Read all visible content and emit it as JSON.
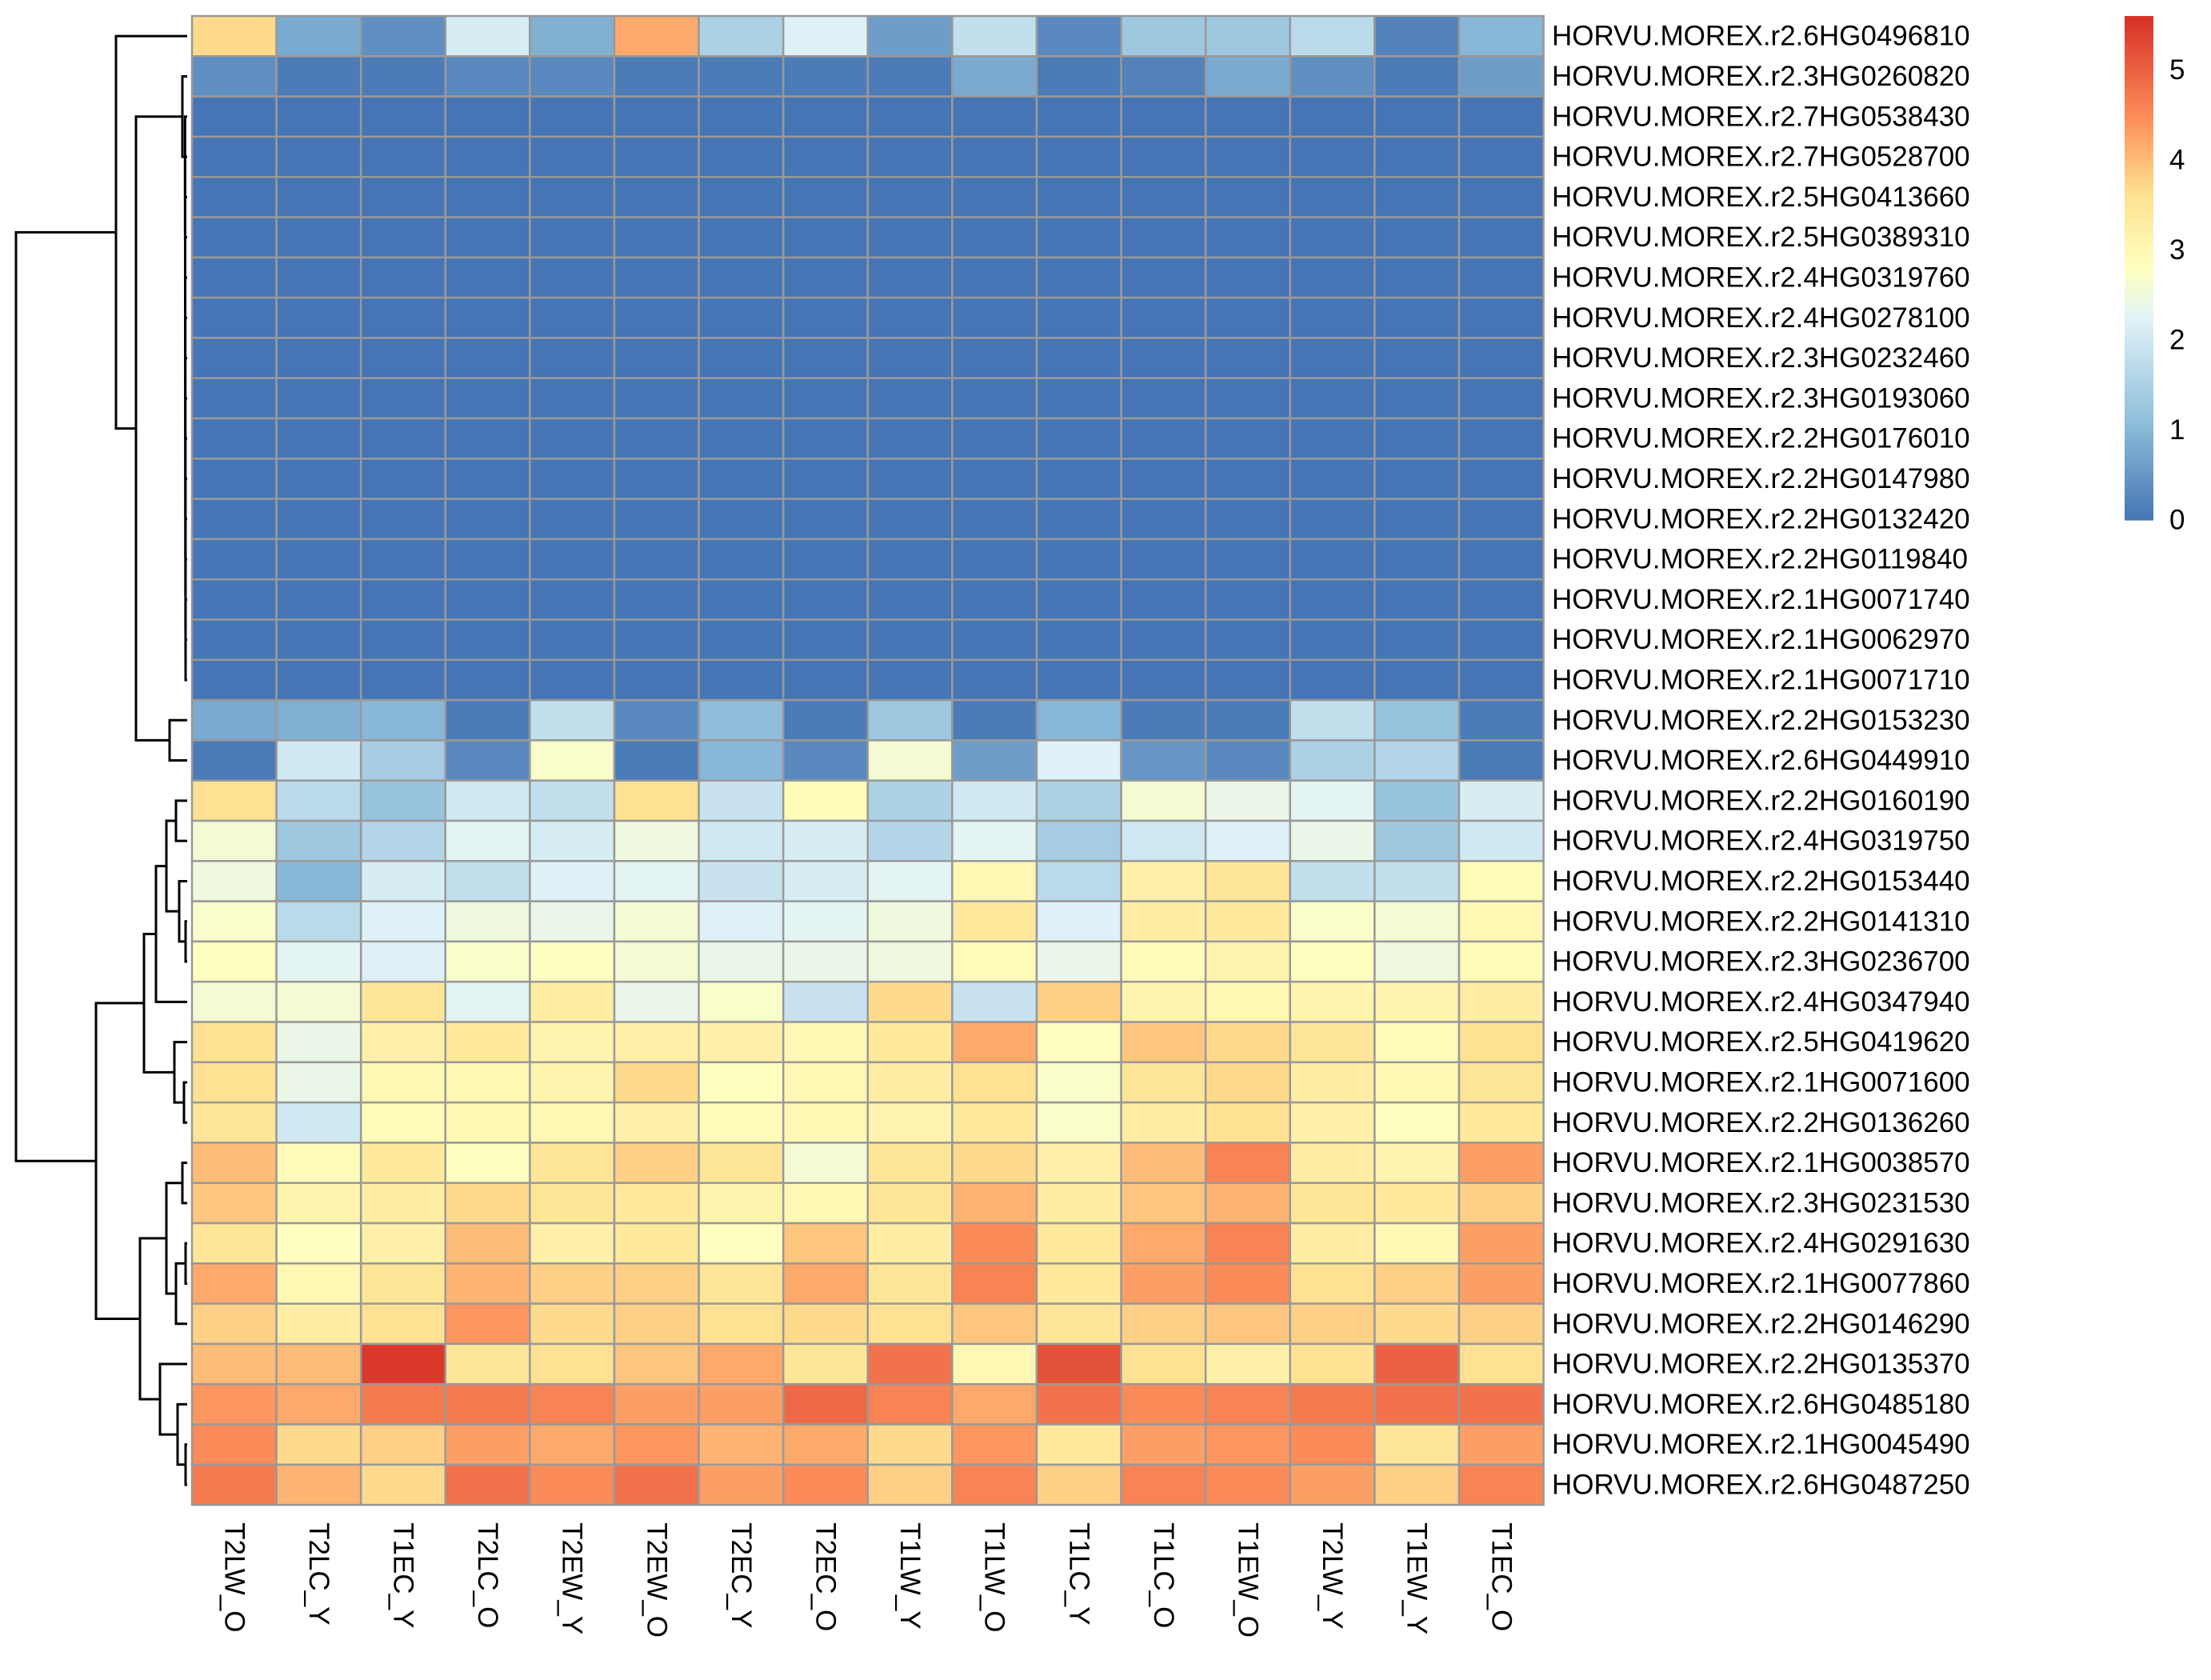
{
  "chart_data": {
    "type": "heatmap",
    "columns": [
      "T2LW_O",
      "T2LC_Y",
      "T1EC_Y",
      "T2LC_O",
      "T2EW_Y",
      "T2EW_O",
      "T2EC_Y",
      "T2EC_O",
      "T1LW_Y",
      "T1LW_O",
      "T1LC_Y",
      "T1LC_O",
      "T1EW_O",
      "T2LW_Y",
      "T1EW_Y",
      "T1EC_O"
    ],
    "rows": [
      "HORVU.MOREX.r2.6HG0496810",
      "HORVU.MOREX.r2.3HG0260820",
      "HORVU.MOREX.r2.7HG0538430",
      "HORVU.MOREX.r2.7HG0528700",
      "HORVU.MOREX.r2.5HG0413660",
      "HORVU.MOREX.r2.5HG0389310",
      "HORVU.MOREX.r2.4HG0319760",
      "HORVU.MOREX.r2.4HG0278100",
      "HORVU.MOREX.r2.3HG0232460",
      "HORVU.MOREX.r2.3HG0193060",
      "HORVU.MOREX.r2.2HG0176010",
      "HORVU.MOREX.r2.2HG0147980",
      "HORVU.MOREX.r2.2HG0132420",
      "HORVU.MOREX.r2.2HG0119840",
      "HORVU.MOREX.r2.1HG0071740",
      "HORVU.MOREX.r2.1HG0062970",
      "HORVU.MOREX.r2.1HG0071710",
      "HORVU.MOREX.r2.2HG0153230",
      "HORVU.MOREX.r2.6HG0449910",
      "HORVU.MOREX.r2.2HG0160190",
      "HORVU.MOREX.r2.4HG0319750",
      "HORVU.MOREX.r2.2HG0153440",
      "HORVU.MOREX.r2.2HG0141310",
      "HORVU.MOREX.r2.3HG0236700",
      "HORVU.MOREX.r2.4HG0347940",
      "HORVU.MOREX.r2.5HG0419620",
      "HORVU.MOREX.r2.1HG0071600",
      "HORVU.MOREX.r2.2HG0136260",
      "HORVU.MOREX.r2.1HG0038570",
      "HORVU.MOREX.r2.3HG0231530",
      "HORVU.MOREX.r2.4HG0291630",
      "HORVU.MOREX.r2.1HG0077860",
      "HORVU.MOREX.r2.2HG0146290",
      "HORVU.MOREX.r2.2HG0135370",
      "HORVU.MOREX.r2.6HG0485180",
      "HORVU.MOREX.r2.1HG0045490",
      "HORVU.MOREX.r2.6HG0487250"
    ],
    "values": [
      [
        3.7,
        0.8,
        0.4,
        2.1,
        0.9,
        4.2,
        1.5,
        2.2,
        0.6,
        1.8,
        0.3,
        1.3,
        1.3,
        1.7,
        0.2,
        1.0
      ],
      [
        0.4,
        0.1,
        0.1,
        0.3,
        0.3,
        0.1,
        0.1,
        0.1,
        0.1,
        0.8,
        0.1,
        0.2,
        0.8,
        0.4,
        0.1,
        0.6
      ],
      [
        0,
        0,
        0,
        0,
        0,
        0,
        0,
        0,
        0,
        0,
        0,
        0,
        0,
        0,
        0,
        0
      ],
      [
        0,
        0,
        0,
        0,
        0,
        0,
        0,
        0,
        0,
        0,
        0,
        0,
        0,
        0,
        0,
        0
      ],
      [
        0,
        0,
        0,
        0,
        0,
        0,
        0,
        0,
        0,
        0,
        0,
        0,
        0,
        0,
        0,
        0
      ],
      [
        0,
        0,
        0,
        0,
        0,
        0,
        0,
        0,
        0,
        0,
        0,
        0,
        0,
        0,
        0,
        0
      ],
      [
        0,
        0,
        0,
        0,
        0,
        0,
        0,
        0,
        0,
        0,
        0,
        0,
        0,
        0,
        0,
        0
      ],
      [
        0,
        0,
        0,
        0,
        0,
        0,
        0,
        0,
        0,
        0,
        0,
        0,
        0,
        0,
        0,
        0
      ],
      [
        0,
        0,
        0,
        0,
        0,
        0,
        0,
        0,
        0,
        0,
        0,
        0,
        0,
        0,
        0,
        0
      ],
      [
        0,
        0,
        0,
        0,
        0,
        0,
        0,
        0,
        0,
        0,
        0,
        0,
        0,
        0,
        0,
        0
      ],
      [
        0,
        0,
        0,
        0,
        0,
        0,
        0,
        0,
        0,
        0,
        0,
        0,
        0,
        0,
        0,
        0
      ],
      [
        0,
        0,
        0,
        0,
        0,
        0,
        0,
        0,
        0,
        0,
        0,
        0,
        0,
        0,
        0,
        0
      ],
      [
        0,
        0,
        0,
        0,
        0,
        0,
        0,
        0,
        0,
        0,
        0,
        0,
        0,
        0,
        0,
        0
      ],
      [
        0,
        0,
        0,
        0,
        0,
        0,
        0,
        0,
        0,
        0,
        0,
        0,
        0,
        0,
        0,
        0
      ],
      [
        0,
        0,
        0,
        0,
        0,
        0,
        0,
        0,
        0,
        0,
        0,
        0,
        0,
        0,
        0,
        0
      ],
      [
        0,
        0,
        0,
        0,
        0,
        0,
        0,
        0,
        0,
        0,
        0,
        0,
        0,
        0,
        0,
        0
      ],
      [
        0,
        0,
        0,
        0,
        0,
        0,
        0,
        0,
        0,
        0,
        0,
        0,
        0,
        0,
        0,
        0
      ],
      [
        0.8,
        0.9,
        1.0,
        0.1,
        1.8,
        0.3,
        1.1,
        0.1,
        1.3,
        0.1,
        1.0,
        0.1,
        0.1,
        1.8,
        1.2,
        0.1
      ],
      [
        0.1,
        2.0,
        1.4,
        0.3,
        2.7,
        0.1,
        1.0,
        0.3,
        2.6,
        0.6,
        2.2,
        0.5,
        0.3,
        1.5,
        1.6,
        0.1
      ],
      [
        3.6,
        1.7,
        1.2,
        2.0,
        1.8,
        3.6,
        1.9,
        2.9,
        1.5,
        2.0,
        1.5,
        2.6,
        2.4,
        2.3,
        1.2,
        2.1
      ],
      [
        2.6,
        1.3,
        1.6,
        2.3,
        2.1,
        2.5,
        2.0,
        2.1,
        1.6,
        2.3,
        1.4,
        2.0,
        2.2,
        2.4,
        1.3,
        2.0
      ],
      [
        2.5,
        1.0,
        2.1,
        1.8,
        2.2,
        2.3,
        1.9,
        2.1,
        2.3,
        3.0,
        1.7,
        3.2,
        3.5,
        1.8,
        1.8,
        2.9
      ],
      [
        2.7,
        1.7,
        2.2,
        2.5,
        2.4,
        2.6,
        2.2,
        2.3,
        2.5,
        3.4,
        2.2,
        3.3,
        3.4,
        2.7,
        2.6,
        3.0
      ],
      [
        2.8,
        2.3,
        2.2,
        2.7,
        2.8,
        2.6,
        2.4,
        2.4,
        2.5,
        2.9,
        2.4,
        2.9,
        3.1,
        2.8,
        2.5,
        2.9
      ],
      [
        2.6,
        2.6,
        3.5,
        2.3,
        3.3,
        2.4,
        2.7,
        1.9,
        3.7,
        1.9,
        3.8,
        3.1,
        3.0,
        3.1,
        3.1,
        3.3
      ],
      [
        3.6,
        2.4,
        3.2,
        3.4,
        3.1,
        3.2,
        3.2,
        3.0,
        3.4,
        4.2,
        2.8,
        3.9,
        3.7,
        3.5,
        2.9,
        3.6
      ],
      [
        3.6,
        2.4,
        3.0,
        3.0,
        3.1,
        3.7,
        2.8,
        3.0,
        3.3,
        3.6,
        2.7,
        3.5,
        3.7,
        3.3,
        3.0,
        3.5
      ],
      [
        3.5,
        2.0,
        2.9,
        3.0,
        3.0,
        3.2,
        2.9,
        3.0,
        3.1,
        3.4,
        2.7,
        3.3,
        3.6,
        3.2,
        2.8,
        3.4
      ],
      [
        4.0,
        2.9,
        3.4,
        2.8,
        3.5,
        3.8,
        3.5,
        2.6,
        3.5,
        3.7,
        3.2,
        4.0,
        4.6,
        3.3,
        3.1,
        4.3
      ],
      [
        3.9,
        3.1,
        3.3,
        3.7,
        3.5,
        3.4,
        3.1,
        3.0,
        3.5,
        4.1,
        3.3,
        3.9,
        4.1,
        3.5,
        3.4,
        3.8
      ],
      [
        3.5,
        2.8,
        3.2,
        4.0,
        3.2,
        3.4,
        2.8,
        3.9,
        3.3,
        4.5,
        3.4,
        4.2,
        4.6,
        3.3,
        3.0,
        4.3
      ],
      [
        4.2,
        3.0,
        3.5,
        4.1,
        3.8,
        3.8,
        3.5,
        4.2,
        3.5,
        4.6,
        3.4,
        4.3,
        4.5,
        3.6,
        3.8,
        4.3
      ],
      [
        3.8,
        3.3,
        3.6,
        4.4,
        3.7,
        3.8,
        3.6,
        3.7,
        3.6,
        3.9,
        3.5,
        3.8,
        3.9,
        3.8,
        3.7,
        3.8
      ],
      [
        4.0,
        4.0,
        5.5,
        3.5,
        3.6,
        3.9,
        4.2,
        3.5,
        4.8,
        3.0,
        5.2,
        3.6,
        3.2,
        3.6,
        5.0,
        3.6
      ],
      [
        4.4,
        4.2,
        4.7,
        4.7,
        4.6,
        4.3,
        4.3,
        4.9,
        4.6,
        4.2,
        4.8,
        4.5,
        4.6,
        4.7,
        4.8,
        4.8
      ],
      [
        4.5,
        3.7,
        3.8,
        4.3,
        4.2,
        4.4,
        4.1,
        4.2,
        3.7,
        4.4,
        3.4,
        4.3,
        4.4,
        4.5,
        3.5,
        4.3
      ],
      [
        4.7,
        4.1,
        3.7,
        4.8,
        4.5,
        4.8,
        4.3,
        4.5,
        3.8,
        4.6,
        3.8,
        4.6,
        4.5,
        4.3,
        3.8,
        4.6
      ]
    ],
    "colorbar": {
      "min": 0,
      "max": 5.6,
      "ticks": [
        0,
        1,
        2,
        3,
        4,
        5
      ]
    },
    "colors": {
      "low": "#4575b4",
      "mid": "#ffffbf",
      "high": "#d73027",
      "border": "#999999",
      "dendrogram": "#000000"
    },
    "dendrogram": "row clustering tree on left",
    "legend_position": "right"
  }
}
